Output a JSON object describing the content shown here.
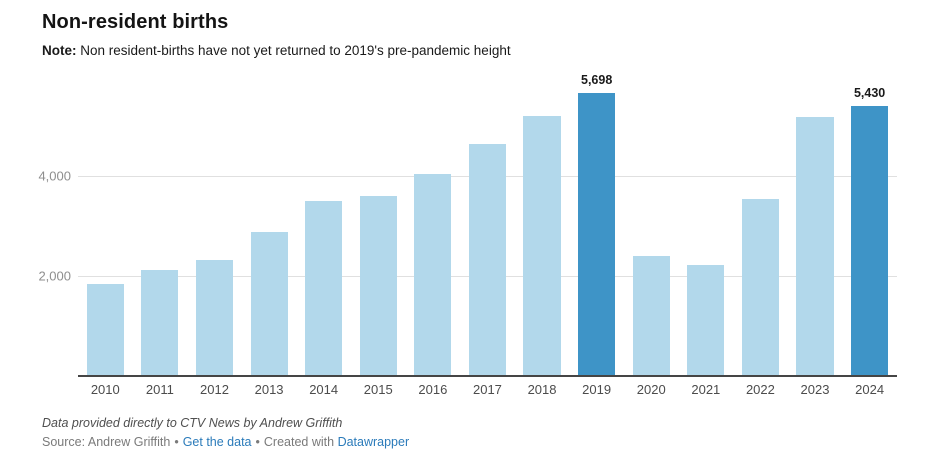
{
  "header": {
    "title": "Non-resident births",
    "note_label": "Note:",
    "note_text": " Non resident-births have not yet returned to 2019's pre-pandemic height"
  },
  "chart_data": {
    "type": "bar",
    "title": "Non-resident births",
    "categories": [
      "2010",
      "2011",
      "2012",
      "2013",
      "2014",
      "2015",
      "2016",
      "2017",
      "2018",
      "2019",
      "2020",
      "2021",
      "2022",
      "2023",
      "2024"
    ],
    "values": [
      1850,
      2140,
      2340,
      2900,
      3520,
      3610,
      4060,
      4660,
      5220,
      5698,
      2420,
      2230,
      3560,
      5200,
      5430
    ],
    "annotations": [
      {
        "category": "2019",
        "label": "5,698"
      },
      {
        "category": "2024",
        "label": "5,430"
      }
    ],
    "highlight_categories": [
      "2019",
      "2024"
    ],
    "yticks": [
      {
        "value": 2000,
        "label": "2,000"
      },
      {
        "value": 4000,
        "label": "4,000"
      }
    ],
    "ylim": [
      0,
      5730
    ],
    "grid": "horizontal",
    "xlabel": "",
    "ylabel": "",
    "colors": {
      "bar": "#b2d8eb",
      "bar_highlight": "#3e94c7"
    }
  },
  "footer": {
    "byline": "Data provided directly to CTV News by Andrew Griffith",
    "source_prefix": "Source: Andrew Griffith",
    "separator": "•",
    "get_data_label": "Get the data",
    "created_with": "Created with ",
    "datawrapper_label": "Datawrapper"
  }
}
